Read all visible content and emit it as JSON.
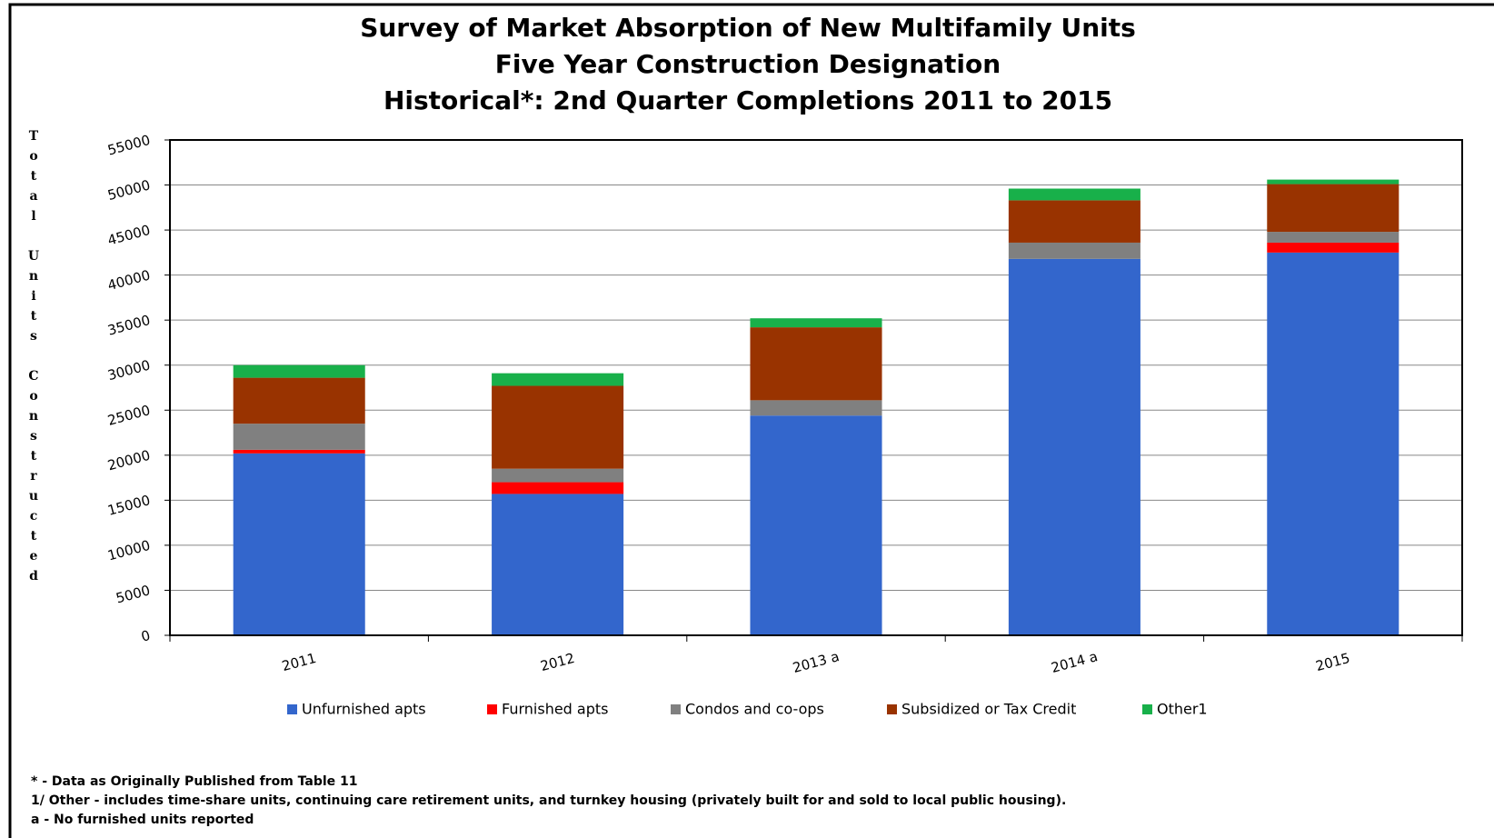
{
  "chart_data": {
    "type": "stacked_bar",
    "title": [
      "Survey of Market Absorption of New Multifamily Units",
      "Five Year Construction Designation",
      "Historical*:  2nd Quarter Completions 2011 to 2015"
    ],
    "y_label": "Total Units Constructed",
    "categories": [
      "2011",
      "2012",
      "2013 a",
      "2014 a",
      "2015"
    ],
    "series": [
      {
        "name": "Unfurnished apts",
        "color": "#3366cc",
        "values": [
          20200,
          15700,
          24400,
          41800,
          42500
        ]
      },
      {
        "name": "Furnished apts",
        "color": "#ff0000",
        "values": [
          400,
          1300,
          0,
          0,
          1100
        ]
      },
      {
        "name": "Condos and co-ops",
        "color": "#808080",
        "values": [
          2900,
          1500,
          1700,
          1800,
          1200
        ]
      },
      {
        "name": "Subsidized or Tax Credit",
        "color": "#993300",
        "values": [
          5100,
          9200,
          8100,
          4700,
          5300
        ]
      },
      {
        "name": "Other1",
        "color": "#18b04a",
        "values": [
          1400,
          1400,
          1000,
          1300,
          500
        ]
      }
    ],
    "ylim": [
      0,
      55000
    ],
    "yticks": [
      0,
      5000,
      10000,
      15000,
      20000,
      25000,
      30000,
      35000,
      40000,
      45000,
      50000,
      55000
    ],
    "grid": true,
    "legend": "bottom",
    "footnotes": [
      "* - Data as Originally Published  from Table 11",
      "1/ Other - includes time-share units, continuing  care retirement units, and turnkey housing  (privately built for and sold to local public housing).",
      "a - No furnished units reported"
    ]
  }
}
